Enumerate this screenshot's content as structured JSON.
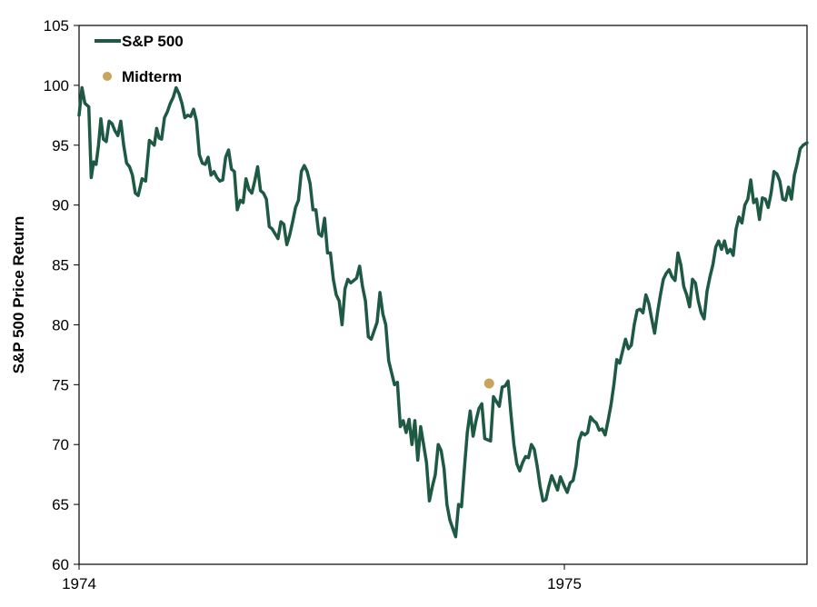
{
  "chart_data": {
    "type": "line",
    "title": "",
    "xlabel": "",
    "ylabel": "S&P 500 Price Return",
    "ylim": [
      60,
      105
    ],
    "yticks": [
      60,
      65,
      70,
      75,
      80,
      85,
      90,
      95,
      100,
      105
    ],
    "xticks": [
      {
        "value": 1974,
        "label": "1974"
      },
      {
        "value": 1975,
        "label": "1975"
      }
    ],
    "xlim": [
      1974,
      1975.5
    ],
    "grid": false,
    "legend_position": "top-left",
    "colors": {
      "series": "#1d5943",
      "marker": "#c9a45c",
      "axis": "#000000"
    },
    "series": [
      {
        "name": "S&P 500",
        "x": [
          1974.0,
          1974.006,
          1974.012,
          1974.02,
          1974.025,
          1974.03,
          1974.035,
          1974.04,
          1974.045,
          1974.05,
          1974.056,
          1974.062,
          1974.068,
          1974.074,
          1974.08,
          1974.086,
          1974.092,
          1974.098,
          1974.104,
          1974.11,
          1974.116,
          1974.122,
          1974.13,
          1974.137,
          1974.145,
          1974.15,
          1974.155,
          1974.16,
          1974.165,
          1974.17,
          1974.176,
          1974.182,
          1974.188,
          1974.194,
          1974.2,
          1974.206,
          1974.212,
          1974.218,
          1974.224,
          1974.23,
          1974.236,
          1974.242,
          1974.248,
          1974.254,
          1974.26,
          1974.266,
          1974.272,
          1974.278,
          1974.284,
          1974.29,
          1974.296,
          1974.302,
          1974.308,
          1974.314,
          1974.32,
          1974.326,
          1974.332,
          1974.338,
          1974.344,
          1974.35,
          1974.356,
          1974.362,
          1974.368,
          1974.374,
          1974.38,
          1974.386,
          1974.392,
          1974.398,
          1974.404,
          1974.41,
          1974.416,
          1974.422,
          1974.428,
          1974.434,
          1974.44,
          1974.446,
          1974.452,
          1974.458,
          1974.464,
          1974.47,
          1974.476,
          1974.482,
          1974.488,
          1974.494,
          1974.5,
          1974.506,
          1974.512,
          1974.518,
          1974.524,
          1974.53,
          1974.536,
          1974.542,
          1974.548,
          1974.554,
          1974.56,
          1974.566,
          1974.572,
          1974.578,
          1974.584,
          1974.59,
          1974.596,
          1974.602,
          1974.608,
          1974.614,
          1974.62,
          1974.626,
          1974.632,
          1974.638,
          1974.644,
          1974.65,
          1974.656,
          1974.662,
          1974.668,
          1974.674,
          1974.68,
          1974.686,
          1974.692,
          1974.698,
          1974.704,
          1974.71,
          1974.716,
          1974.722,
          1974.728,
          1974.734,
          1974.74,
          1974.746,
          1974.752,
          1974.758,
          1974.764,
          1974.77,
          1974.776,
          1974.782,
          1974.788,
          1974.794,
          1974.8,
          1974.806,
          1974.812,
          1974.818,
          1974.824,
          1974.83,
          1974.836,
          1974.842,
          1974.848,
          1974.854,
          1974.86,
          1974.866,
          1974.872,
          1974.878,
          1974.884,
          1974.89,
          1974.896,
          1974.902,
          1974.908,
          1974.914,
          1974.92,
          1974.926,
          1974.932,
          1974.938,
          1974.944,
          1974.95,
          1974.956,
          1974.962,
          1974.968,
          1974.974,
          1974.98,
          1974.986,
          1974.992,
          1975.0,
          1975.006,
          1975.012,
          1975.018,
          1975.024,
          1975.03,
          1975.036,
          1975.042,
          1975.048,
          1975.054,
          1975.06,
          1975.066,
          1975.072,
          1975.078,
          1975.084,
          1975.09,
          1975.096,
          1975.102,
          1975.108,
          1975.114,
          1975.12,
          1975.126,
          1975.132,
          1975.138,
          1975.144,
          1975.15,
          1975.156,
          1975.162,
          1975.168,
          1975.174,
          1975.18,
          1975.186,
          1975.192,
          1975.198,
          1975.204,
          1975.21,
          1975.216,
          1975.222,
          1975.228,
          1975.234,
          1975.24,
          1975.246,
          1975.252,
          1975.258,
          1975.264,
          1975.27,
          1975.276,
          1975.282,
          1975.288,
          1975.294,
          1975.3,
          1975.306,
          1975.312,
          1975.318,
          1975.324,
          1975.33,
          1975.336,
          1975.342,
          1975.348,
          1975.354,
          1975.36,
          1975.366,
          1975.372,
          1975.378,
          1975.384,
          1975.39,
          1975.396,
          1975.402,
          1975.408,
          1975.414,
          1975.42,
          1975.426,
          1975.432,
          1975.438,
          1975.444,
          1975.45,
          1975.456,
          1975.462,
          1975.468,
          1975.474,
          1975.48,
          1975.486,
          1975.492,
          1975.5
        ],
        "values": [
          97.5,
          99.8,
          98.5,
          98.2,
          92.3,
          93.6,
          93.4,
          95.0,
          97.2,
          95.5,
          95.3,
          97.0,
          96.8,
          96.2,
          95.8,
          97.0,
          95.0,
          93.5,
          93.2,
          92.5,
          91.0,
          90.8,
          92.2,
          92.0,
          95.4,
          95.2,
          95.0,
          96.4,
          95.6,
          95.5,
          97.3,
          97.8,
          98.5,
          99.0,
          99.8,
          99.3,
          98.5,
          97.3,
          97.5,
          97.4,
          98.0,
          97.0,
          94.2,
          93.5,
          93.4,
          94.0,
          92.5,
          92.8,
          92.3,
          92.0,
          92.1,
          94.0,
          94.6,
          93.0,
          92.8,
          89.6,
          90.4,
          90.2,
          92.2,
          91.3,
          91.0,
          92.0,
          93.2,
          91.2,
          91.0,
          90.5,
          88.2,
          88.0,
          87.6,
          87.2,
          88.6,
          88.4,
          86.7,
          87.5,
          88.6,
          89.8,
          90.4,
          92.8,
          93.3,
          92.8,
          91.8,
          89.6,
          89.6,
          87.6,
          87.4,
          88.9,
          86.0,
          86.0,
          83.8,
          82.5,
          82.0,
          80.0,
          83.0,
          83.8,
          83.5,
          83.7,
          83.9,
          84.9,
          83.2,
          82.0,
          79.0,
          78.8,
          79.5,
          80.2,
          82.7,
          80.9,
          80.0,
          77.0,
          76.0,
          75.0,
          75.2,
          71.5,
          72.0,
          71.0,
          72.1,
          70.0,
          72.0,
          68.7,
          71.5,
          70.0,
          68.5,
          65.3,
          66.5,
          67.5,
          70.0,
          69.5,
          68.0,
          65.0,
          63.7,
          63.0,
          62.3,
          65.0,
          64.8,
          68.0,
          71.0,
          72.8,
          70.7,
          72.0,
          73.0,
          73.4,
          70.5,
          70.4,
          70.3,
          74.0,
          73.6,
          73.2,
          74.8,
          74.9,
          75.3,
          72.5,
          70.0,
          68.4,
          67.8,
          68.5,
          69.0,
          68.9,
          70.0,
          69.6,
          68.2,
          66.5,
          65.3,
          65.4,
          66.5,
          67.4,
          66.8,
          66.2,
          67.3,
          66.5,
          66.0,
          66.8,
          67.0,
          68.2,
          70.3,
          71.0,
          70.8,
          71.0,
          72.3,
          72.0,
          71.8,
          71.2,
          71.3,
          70.8,
          72.0,
          73.3,
          75.0,
          77.1,
          76.8,
          77.8,
          78.8,
          78.0,
          78.3,
          80.0,
          81.2,
          81.3,
          81.0,
          82.5,
          81.8,
          80.5,
          79.3,
          81.0,
          82.5,
          83.8,
          84.3,
          84.6,
          84.0,
          83.7,
          86.0,
          85.0,
          83.2,
          82.5,
          81.5,
          83.8,
          83.5,
          82.0,
          81.0,
          80.5,
          82.8,
          84.0,
          85.0,
          86.5,
          87.0,
          86.3,
          87.0,
          86.0,
          86.3,
          85.8,
          88.0,
          89.0,
          88.5,
          90.0,
          90.5,
          92.1,
          90.2,
          90.5,
          88.8,
          90.6,
          90.5,
          89.8,
          91.0,
          92.8,
          92.6,
          92.0,
          90.5,
          90.4,
          91.5,
          90.5,
          92.5,
          93.5,
          94.7,
          95.0,
          95.2
        ]
      }
    ],
    "markers": [
      {
        "name": "Midterm",
        "x": 1974.845,
        "y": 75.1
      }
    ]
  }
}
